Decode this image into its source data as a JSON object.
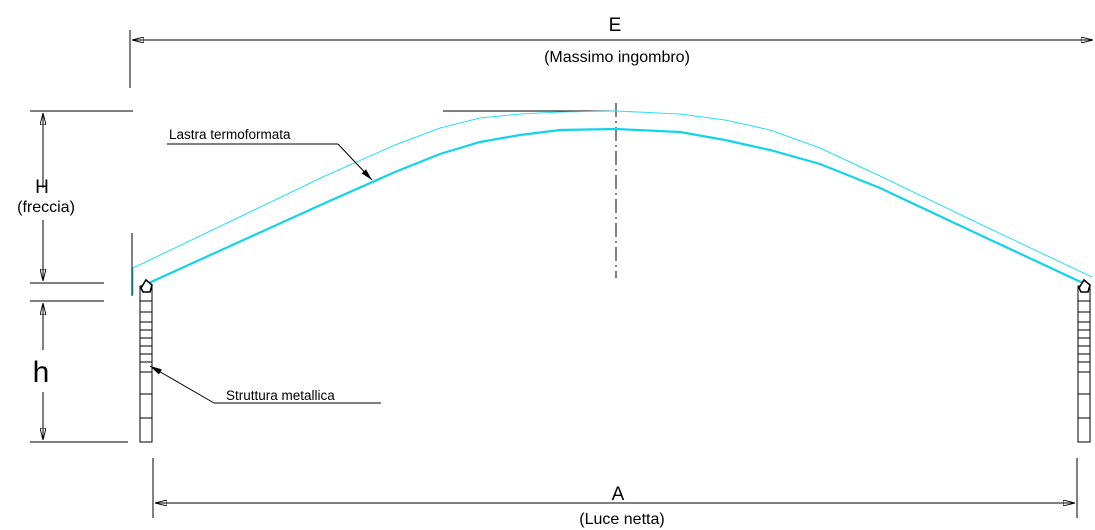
{
  "dimension_E": {
    "letter": "E",
    "note": "(Massimo ingombro)"
  },
  "dimension_A": {
    "letter": "A",
    "note": "(Luce netta)"
  },
  "dimension_H": {
    "letter": "H",
    "note": "(freccia)"
  },
  "dimension_h": {
    "letter": "h"
  },
  "callouts": {
    "sheet": "Lastra termoformata",
    "structure": "Struttura metallica"
  },
  "colors": {
    "arch": "#12d3e8",
    "lines": "#000000"
  }
}
